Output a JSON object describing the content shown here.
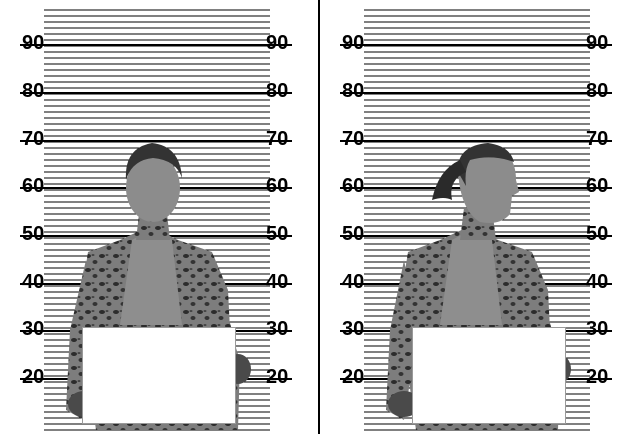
{
  "scale": {
    "marks": [
      "90",
      "80",
      "70",
      "60",
      "50",
      "40",
      "30",
      "20"
    ]
  },
  "panels": [
    {
      "id": "front",
      "pose": "front"
    },
    {
      "id": "profile",
      "pose": "side"
    }
  ],
  "colors": {
    "background": "#ffffff",
    "lines": "#000000",
    "skin": "#8a8a8a",
    "hair": "#3a3a3a",
    "card": "#ffffff"
  }
}
